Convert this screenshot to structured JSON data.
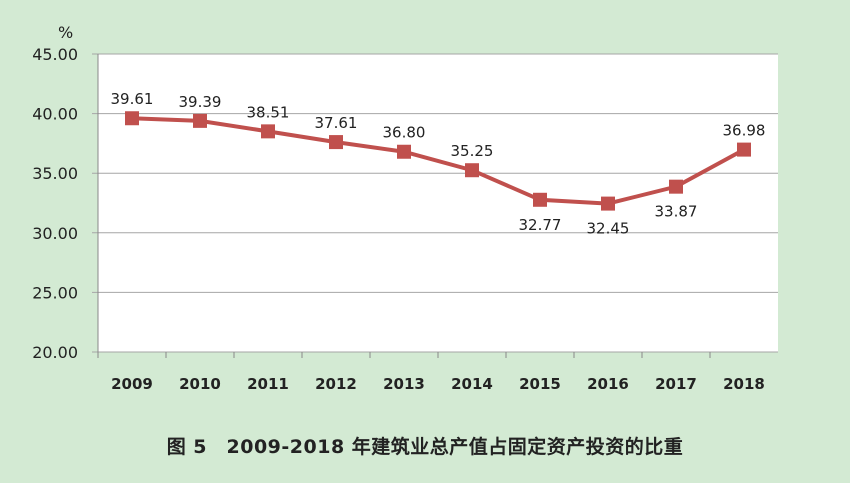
{
  "chart_data": {
    "type": "line",
    "title": "图 5　2009-2018 年建筑业总产值占固定资产投资的比重",
    "ylabel": "%",
    "xlabel": "",
    "categories": [
      "2009",
      "2010",
      "2011",
      "2012",
      "2013",
      "2014",
      "2015",
      "2016",
      "2017",
      "2018"
    ],
    "series": [
      {
        "name": "建筑业总产值占固定资产投资的比重",
        "values": [
          39.61,
          39.39,
          38.51,
          37.61,
          36.8,
          35.25,
          32.77,
          32.45,
          33.87,
          36.98
        ]
      }
    ],
    "data_labels": [
      "39.61",
      "39.39",
      "38.51",
      "37.61",
      "36.80",
      "35.25",
      "32.77",
      "32.45",
      "33.87",
      "36.98"
    ],
    "yticks": [
      "20.00",
      "25.00",
      "30.00",
      "35.00",
      "40.00",
      "45.00"
    ],
    "ylim": [
      20,
      45
    ],
    "grid": true,
    "legend": "none",
    "colors": {
      "line": "#c0504d",
      "background": "#d3ead3",
      "plot": "#ffffff",
      "grid": "#a6a6a6"
    }
  }
}
